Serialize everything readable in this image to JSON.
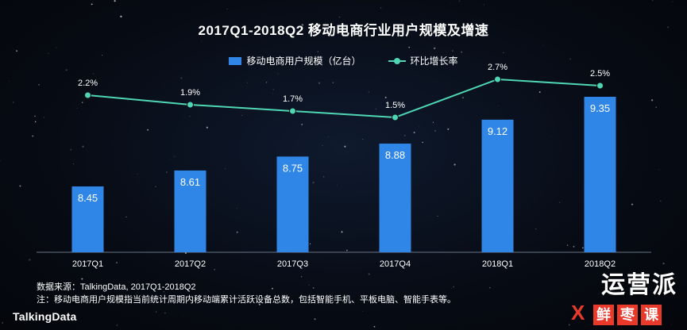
{
  "title": "2017Q1-2018Q2  移动电商行业用户规模及增速",
  "legend": {
    "bar_label": "移动电商用户规模（亿台）",
    "line_label": "环比增长率"
  },
  "colors": {
    "bar": "#2f86e6",
    "line": "#4fd6b3",
    "axis": "#6a7587"
  },
  "chart_data": {
    "type": "bar",
    "categories": [
      "2017Q1",
      "2017Q2",
      "2017Q3",
      "2017Q4",
      "2018Q1",
      "2018Q2"
    ],
    "series": [
      {
        "name": "移动电商用户规模（亿台）",
        "type": "bar",
        "values": [
          8.45,
          8.61,
          8.75,
          8.88,
          9.12,
          9.35
        ],
        "labels": [
          "8.45",
          "8.61",
          "8.75",
          "8.88",
          "9.12",
          "9.35"
        ]
      },
      {
        "name": "环比增长率",
        "type": "line",
        "values": [
          2.2,
          1.9,
          1.7,
          1.5,
          2.7,
          2.5
        ],
        "labels": [
          "2.2%",
          "1.9%",
          "1.7%",
          "1.5%",
          "2.7%",
          "2.5%"
        ]
      }
    ],
    "title": "2017Q1-2018Q2  移动电商行业用户规模及增速",
    "legend_position": "top-center",
    "grid": false
  },
  "footer": {
    "source": "数据来源：TalkingData, 2017Q1-2018Q2",
    "note": "注：移动电商用户规模指当前统计周期内移动端累计活跃设备总数，包括智能手机、平板电脑、智能手表等。",
    "brand": "TalkingData"
  },
  "watermark": {
    "top": "运营派",
    "x": "X",
    "bottom": [
      "鲜",
      "枣",
      "课"
    ]
  }
}
